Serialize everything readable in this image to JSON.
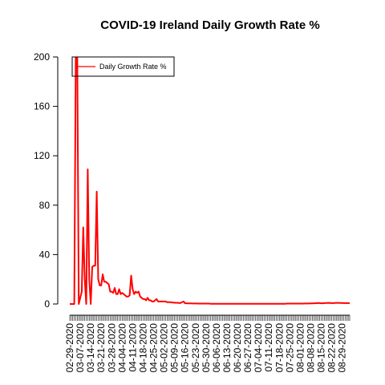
{
  "chart_data": {
    "type": "line",
    "title": "COVID-19 Ireland Daily Growth Rate %",
    "xlabel": "",
    "ylabel": "",
    "ylim": [
      0,
      200
    ],
    "yticks": [
      0,
      40,
      80,
      120,
      160,
      200
    ],
    "x_tick_labels": [
      "02-29-2020",
      "03-07-2020",
      "03-14-2020",
      "03-21-2020",
      "03-28-2020",
      "04-04-2020",
      "04-11-2020",
      "04-18-2020",
      "04-25-2020",
      "05-02-2020",
      "05-09-2020",
      "05-16-2020",
      "05-23-2020",
      "05-30-2020",
      "06-06-2020",
      "06-13-2020",
      "06-20-2020",
      "06-27-2020",
      "07-04-2020",
      "07-11-2020",
      "07-18-2020",
      "07-25-2020",
      "08-01-2020",
      "08-08-2020",
      "08-15-2020",
      "08-22-2020",
      "08-29-2020"
    ],
    "legend": {
      "placement": "top-left",
      "entries": [
        "Daily Growth Rate %"
      ]
    },
    "grid": false,
    "series": [
      {
        "name": "Daily Growth Rate %",
        "color": "#ff0000",
        "values": [
          0,
          0,
          0,
          0,
          200,
          200,
          0,
          5,
          10,
          62,
          20,
          0,
          109,
          20,
          0,
          30,
          31,
          31,
          91,
          20,
          15,
          15,
          24,
          18,
          18,
          17,
          16,
          10,
          10,
          9,
          13,
          8,
          8,
          12,
          8,
          9,
          8,
          7,
          6,
          6,
          7,
          23,
          12,
          8,
          10,
          9,
          10,
          6,
          5,
          4,
          4,
          3,
          5,
          3,
          3,
          2,
          2,
          3,
          4,
          2,
          2,
          2,
          2,
          2,
          2,
          1.5,
          1.5,
          1.5,
          1.2,
          1.2,
          1.0,
          1.0,
          1.0,
          0.8,
          0.8,
          1.5,
          2,
          0.6,
          0.6,
          0.5,
          0.5,
          0.5,
          0.4,
          0.4,
          0.4,
          0.4,
          0.3,
          0.3,
          0.3,
          0.3,
          0.3,
          0.3,
          0.3,
          0.3,
          0.2,
          0.2,
          0.2,
          0.2,
          0.2,
          0.2,
          0.2,
          0.2,
          0.2,
          0.2,
          0.2,
          0.2,
          0.2,
          0.2,
          0.2,
          0.2,
          0.2,
          0.2,
          0.2,
          0.2,
          0.2,
          0.2,
          0.2,
          0.2,
          0.2,
          0.2,
          0.2,
          0.2,
          0.2,
          0.2,
          0.2,
          0.2,
          0.2,
          0.2,
          0.2,
          0.2,
          0.2,
          0.2,
          0.2,
          0.2,
          0.2,
          0.2,
          0.2,
          0.2,
          0.2,
          0.2,
          0.2,
          0.2,
          0.2,
          0.2,
          0.2,
          0.3,
          0.3,
          0.3,
          0.3,
          0.3,
          0.3,
          0.3,
          0.3,
          0.3,
          0.3,
          0.3,
          0.3,
          0.4,
          0.4,
          0.4,
          0.4,
          0.5,
          0.5,
          0.6,
          0.6,
          0.7,
          0.8,
          0.7,
          0.6,
          0.6,
          0.7,
          0.8,
          0.8,
          0.9,
          0.8,
          0.7,
          0.7,
          0.8,
          0.9,
          0.9,
          0.9,
          0.8,
          0.8,
          0.7,
          0.7,
          0.7,
          0.7,
          0.7
        ]
      }
    ]
  }
}
